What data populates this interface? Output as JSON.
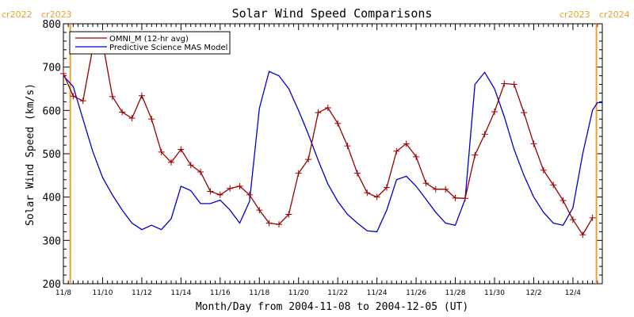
{
  "chart_data": {
    "type": "line",
    "title": "Solar Wind Speed Comparisons",
    "xlabel": "Month/Day from 2004-11-08 to 2004-12-05 (UT)",
    "ylabel": "Solar Wind Speed (km/s)",
    "ylim": [
      200,
      800
    ],
    "xlim": [
      "2004-11-08",
      "2004-12-05"
    ],
    "x_ticks": [
      "11/8",
      "11/10",
      "11/12",
      "11/14",
      "11/16",
      "11/18",
      "11/20",
      "11/22",
      "11/24",
      "11/26",
      "11/28",
      "11/30",
      "12/2",
      "12/4"
    ],
    "y_ticks": [
      200,
      300,
      400,
      500,
      600,
      700,
      800
    ],
    "legend_position": "top-left",
    "grid": false,
    "rotation_labels": {
      "left": [
        "cr2022",
        "cr2023"
      ],
      "right": [
        "cr2023",
        "cr2024"
      ]
    },
    "colors": {
      "omni": "#990000",
      "model": "#0000cc",
      "rotation_marker": "#e8a030",
      "rotation_label": "#e8a030"
    },
    "series": [
      {
        "name": "OMNI_M (12-hr avg)",
        "marker": "plus",
        "x": [
          "2004-11-08 00:00",
          "2004-11-08 12:00",
          "2004-11-09 00:00",
          "2004-11-09 12:00",
          "2004-11-10 00:00",
          "2004-11-10 12:00",
          "2004-11-11 00:00",
          "2004-11-11 12:00",
          "2004-11-12 00:00",
          "2004-11-12 12:00",
          "2004-11-13 00:00",
          "2004-11-13 12:00",
          "2004-11-14 00:00",
          "2004-11-14 12:00",
          "2004-11-15 00:00",
          "2004-11-15 12:00",
          "2004-11-16 00:00",
          "2004-11-16 12:00",
          "2004-11-17 00:00",
          "2004-11-17 12:00",
          "2004-11-18 00:00",
          "2004-11-18 12:00",
          "2004-11-19 00:00",
          "2004-11-19 12:00",
          "2004-11-20 00:00",
          "2004-11-20 12:00",
          "2004-11-21 00:00",
          "2004-11-21 12:00",
          "2004-11-22 00:00",
          "2004-11-22 12:00",
          "2004-11-23 00:00",
          "2004-11-23 12:00",
          "2004-11-24 00:00",
          "2004-11-24 12:00",
          "2004-11-25 00:00",
          "2004-11-25 12:00",
          "2004-11-26 00:00",
          "2004-11-26 12:00",
          "2004-11-27 00:00",
          "2004-11-27 12:00",
          "2004-11-28 00:00",
          "2004-11-28 12:00",
          "2004-11-29 00:00",
          "2004-11-29 12:00",
          "2004-11-30 00:00",
          "2004-11-30 12:00",
          "2004-12-01 00:00",
          "2004-12-01 12:00",
          "2004-12-02 00:00",
          "2004-12-02 12:00",
          "2004-12-03 00:00",
          "2004-12-03 12:00",
          "2004-12-04 00:00",
          "2004-12-04 12:00",
          "2004-12-05 00:00"
        ],
        "values": [
          685,
          633,
          622,
          745,
          757,
          632,
          596,
          582,
          634,
          580,
          504,
          480,
          510,
          474,
          458,
          413,
          405,
          420,
          425,
          405,
          370,
          340,
          337,
          360,
          455,
          487,
          595,
          606,
          570,
          518,
          455,
          410,
          400,
          422,
          506,
          523,
          493,
          432,
          418,
          418,
          398,
          397,
          497,
          545,
          597,
          662,
          660,
          595,
          523,
          462,
          428,
          392,
          348,
          313,
          352
        ]
      },
      {
        "name": "Predictive Science MAS Model",
        "marker": "none",
        "x": [
          "2004-11-08 00:00",
          "2004-11-08 12:00",
          "2004-11-09 00:00",
          "2004-11-09 12:00",
          "2004-11-10 00:00",
          "2004-11-10 12:00",
          "2004-11-11 00:00",
          "2004-11-11 12:00",
          "2004-11-12 00:00",
          "2004-11-12 12:00",
          "2004-11-13 00:00",
          "2004-11-13 12:00",
          "2004-11-14 00:00",
          "2004-11-14 12:00",
          "2004-11-15 00:00",
          "2004-11-15 12:00",
          "2004-11-16 00:00",
          "2004-11-16 12:00",
          "2004-11-17 00:00",
          "2004-11-17 12:00",
          "2004-11-18 00:00",
          "2004-11-18 12:00",
          "2004-11-19 00:00",
          "2004-11-19 12:00",
          "2004-11-20 00:00",
          "2004-11-20 12:00",
          "2004-11-21 00:00",
          "2004-11-21 12:00",
          "2004-11-22 00:00",
          "2004-11-22 12:00",
          "2004-11-23 00:00",
          "2004-11-23 12:00",
          "2004-11-24 00:00",
          "2004-11-24 12:00",
          "2004-11-25 00:00",
          "2004-11-25 12:00",
          "2004-11-26 00:00",
          "2004-11-26 12:00",
          "2004-11-27 00:00",
          "2004-11-27 12:00",
          "2004-11-28 00:00",
          "2004-11-28 12:00",
          "2004-11-29 00:00",
          "2004-11-29 12:00",
          "2004-11-30 00:00",
          "2004-11-30 12:00",
          "2004-12-01 00:00",
          "2004-12-01 12:00",
          "2004-12-02 00:00",
          "2004-12-02 12:00",
          "2004-12-03 00:00",
          "2004-12-03 12:00",
          "2004-12-04 00:00",
          "2004-12-04 12:00",
          "2004-12-05 00:00",
          "2004-12-05 06:00",
          "2004-12-05 12:00"
        ],
        "values": [
          680,
          655,
          580,
          505,
          445,
          405,
          370,
          340,
          325,
          335,
          325,
          350,
          425,
          415,
          385,
          385,
          393,
          370,
          340,
          390,
          605,
          690,
          680,
          650,
          600,
          545,
          485,
          430,
          390,
          360,
          340,
          322,
          320,
          370,
          440,
          448,
          425,
          395,
          365,
          340,
          335,
          395,
          660,
          688,
          650,
          585,
          510,
          450,
          400,
          365,
          340,
          335,
          375,
          500,
          600,
          618,
          618
        ]
      }
    ]
  }
}
